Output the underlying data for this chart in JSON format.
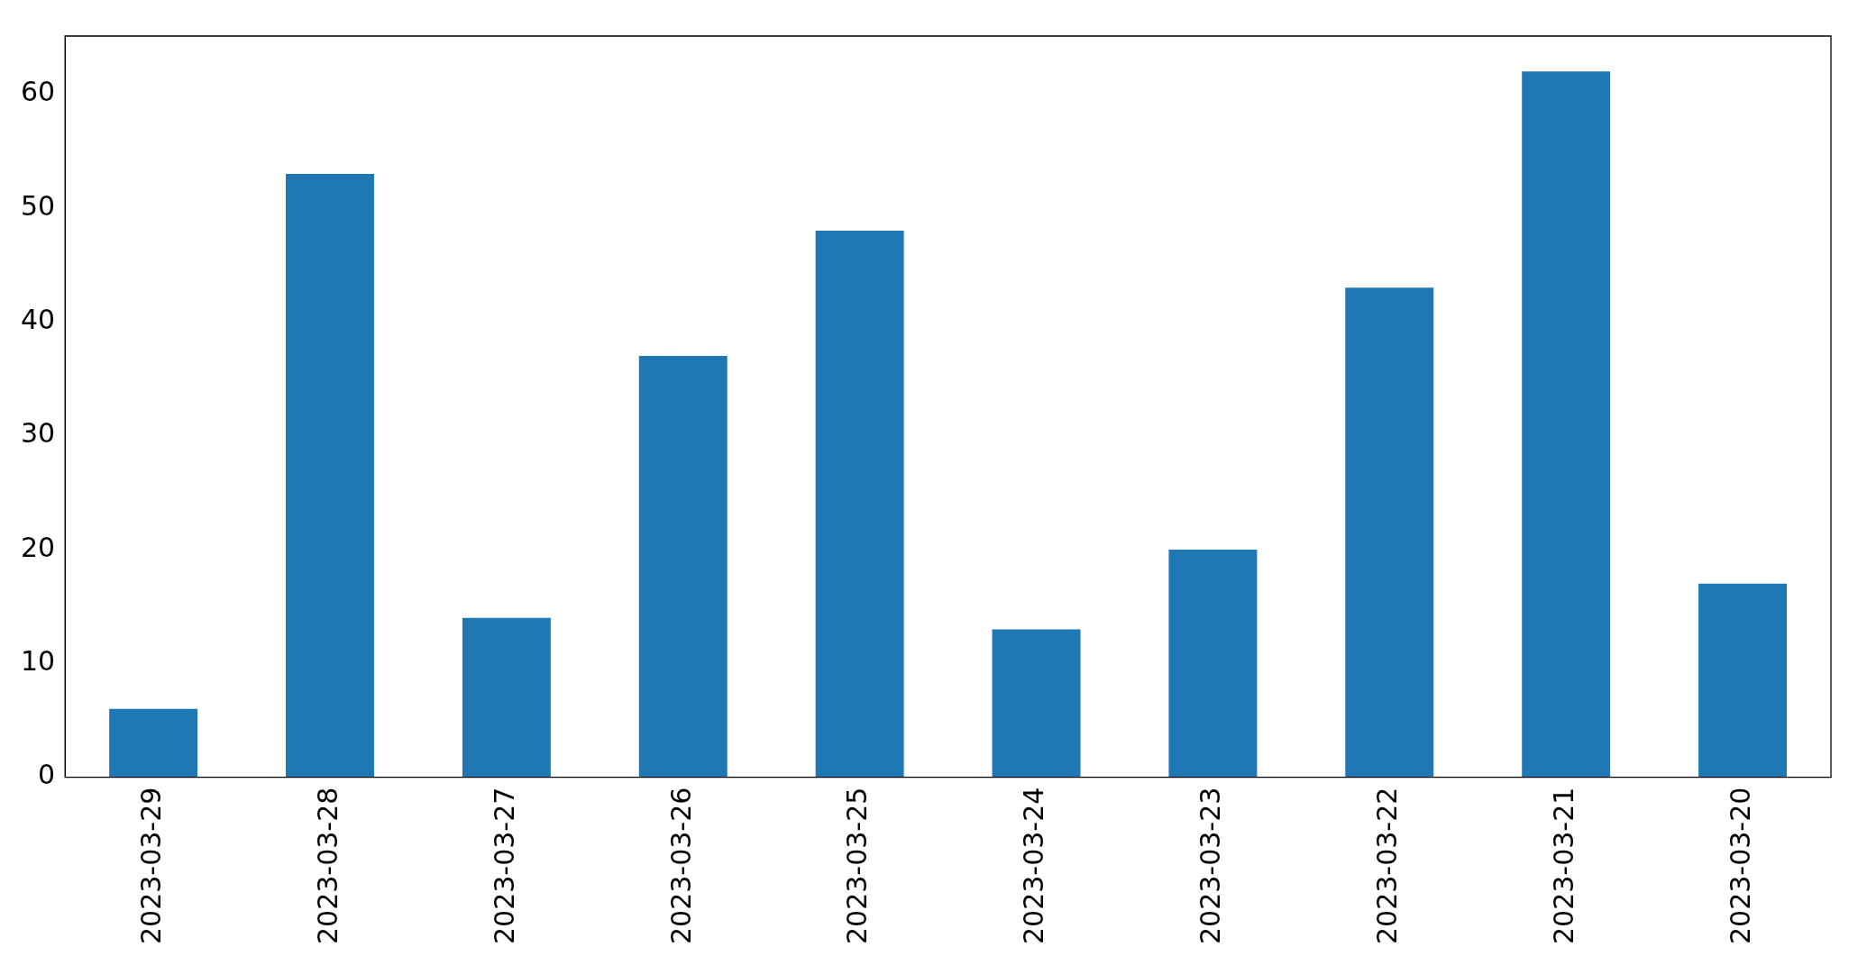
{
  "chart_data": {
    "type": "bar",
    "categories": [
      "2023-03-29",
      "2023-03-28",
      "2023-03-27",
      "2023-03-26",
      "2023-03-25",
      "2023-03-24",
      "2023-03-23",
      "2023-03-22",
      "2023-03-21",
      "2023-03-20"
    ],
    "values": [
      6,
      53,
      14,
      37,
      48,
      13,
      20,
      43,
      62,
      17
    ],
    "color": "#1f77b4",
    "ylim": [
      0,
      65.1
    ],
    "yticks": [
      0,
      10,
      20,
      30,
      40,
      50,
      60
    ],
    "grid": false,
    "legend": false
  }
}
